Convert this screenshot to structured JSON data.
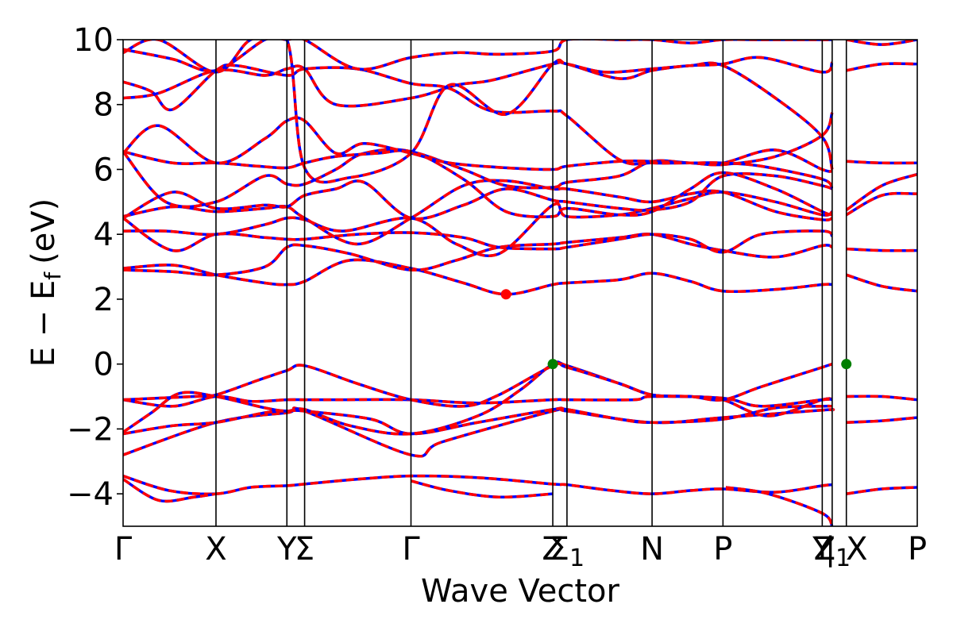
{
  "chart_data": {
    "type": "line",
    "title": "",
    "xlabel": "Wave Vector",
    "ylabel": "E − E",
    "ylabel_subscript": "f",
    "ylabel_unit": "(eV)",
    "ylim": [
      -5,
      10
    ],
    "yticks": [
      -4,
      -2,
      0,
      2,
      4,
      6,
      8,
      10
    ],
    "ytick_labels": [
      "−4",
      "−2",
      "0",
      "2",
      "4",
      "6",
      "8",
      "10"
    ],
    "xlim": [
      0,
      11.2
    ],
    "kpoints": [
      {
        "label": "Γ",
        "x": 0
      },
      {
        "label": "X",
        "x": 1.31
      },
      {
        "label": "Y",
        "x": 2.31
      },
      {
        "label": "Σ",
        "x": 2.56
      },
      {
        "label": "Γ",
        "x": 4.06
      },
      {
        "label": "Z",
        "x": 6.06
      },
      {
        "label": "Σ",
        "sub": "1",
        "x": 6.26
      },
      {
        "label": "N",
        "x": 7.46
      },
      {
        "label": "P",
        "x": 8.46
      },
      {
        "label": "Y",
        "x": 9.86
      },
      {
        "label": "Z",
        "sub": "1",
        "x": 10.0
      },
      {
        "label": "| X",
        "x": 10.2
      },
      {
        "label": "P",
        "x": 11.2
      }
    ],
    "series_colors": {
      "primary": "#0000ff",
      "overlay": "#ff0000"
    },
    "series": [
      {
        "x": [
          0,
          0.65,
          1.31,
          1.8,
          2.31,
          2.56,
          3.3,
          4.06,
          5.0,
          6.06,
          6.26,
          6.9,
          7.46,
          8.0,
          8.46,
          9.2,
          9.86,
          10.0
        ],
        "y": [
          -3.45,
          -3.9,
          -4.0,
          -3.8,
          -3.75,
          -3.7,
          -3.55,
          -3.45,
          -3.5,
          -3.7,
          -3.72,
          -3.9,
          -4.0,
          -3.9,
          -3.85,
          -3.95,
          -3.75,
          -3.72
        ]
      },
      {
        "x": [
          0,
          0.5,
          1.0,
          1.31
        ],
        "y": [
          -3.55,
          -4.2,
          -4.1,
          -4.0
        ]
      },
      {
        "x": [
          4.06,
          4.6,
          5.3,
          6.06
        ],
        "y": [
          -3.6,
          -3.9,
          -4.1,
          -4.0
        ]
      },
      {
        "x": [
          8.5,
          9.1,
          9.86,
          10.0
        ],
        "y": [
          -3.8,
          -4.0,
          -4.6,
          -5.0
        ]
      },
      {
        "x": [
          0,
          1.31,
          2.31,
          2.56,
          4.06,
          4.5,
          6.06,
          6.26,
          7.46,
          8.46,
          9.86,
          10.0
        ],
        "y": [
          -2.8,
          -1.8,
          -1.5,
          -1.45,
          -2.8,
          -2.4,
          -1.45,
          -1.45,
          -1.8,
          -1.65,
          -1.42,
          -1.42
        ]
      },
      {
        "x": [
          0,
          0.7,
          1.31,
          2.0,
          2.31,
          2.56,
          3.5,
          4.06,
          5.0,
          6.06,
          6.26,
          7.0,
          7.46,
          8.46,
          9.2,
          9.86,
          10.0
        ],
        "y": [
          -2.15,
          -1.9,
          -1.8,
          -1.5,
          -1.45,
          -1.45,
          -1.7,
          -2.15,
          -1.8,
          -1.4,
          -1.4,
          -1.7,
          -1.8,
          -1.7,
          -1.35,
          -1.3,
          -1.3
        ]
      },
      {
        "x": [
          0,
          0.4,
          0.8,
          1.31,
          2.0,
          2.31,
          2.56,
          3.2,
          4.06,
          5.0,
          5.6,
          6.06,
          6.26,
          7.0,
          7.46,
          8.0,
          8.46,
          9.1,
          9.86,
          10.0
        ],
        "y": [
          -2.1,
          -1.5,
          -0.9,
          -1.0,
          -1.35,
          -1.45,
          -1.4,
          -1.9,
          -2.15,
          -1.6,
          -0.8,
          0.0,
          -0.05,
          -0.6,
          -0.95,
          -1.0,
          -1.1,
          -1.6,
          -1.1,
          -1.1
        ]
      },
      {
        "x": [
          0,
          0.7,
          1.31,
          1.8,
          2.31,
          2.56,
          3.0,
          4.06,
          5.0,
          6.06,
          6.26,
          7.2,
          7.46,
          8.46,
          9.0,
          9.86,
          10.0
        ],
        "y": [
          -1.1,
          -1.3,
          -1.0,
          -1.15,
          -1.1,
          -1.1,
          -1.1,
          -1.1,
          -1.2,
          -1.1,
          -1.1,
          -1.1,
          -1.0,
          -1.05,
          -1.3,
          -1.1,
          -1.1
        ]
      },
      {
        "x": [
          0,
          1.0,
          1.31,
          1.9,
          2.31,
          2.56,
          3.3,
          4.06,
          4.8,
          5.3,
          6.06,
          6.26,
          7.0,
          7.46,
          8.0,
          8.46,
          9.0,
          9.86,
          10.0
        ],
        "y": [
          -1.1,
          -1.0,
          -0.95,
          -0.5,
          -0.2,
          -0.05,
          -0.6,
          -1.1,
          -1.3,
          -0.95,
          -0.05,
          -0.1,
          -0.6,
          -0.95,
          -1.0,
          -1.1,
          -0.7,
          -0.1,
          0.0
        ]
      },
      {
        "x": [
          10.2,
          10.7,
          11.2
        ],
        "y": [
          -4.0,
          -3.85,
          -3.8
        ]
      },
      {
        "x": [
          10.2,
          10.7,
          11.2
        ],
        "y": [
          -1.8,
          -1.75,
          -1.65
        ]
      },
      {
        "x": [
          10.2,
          10.7,
          11.2
        ],
        "y": [
          -1.0,
          -1.0,
          -1.1
        ]
      },
      {
        "x": [
          0,
          0.7,
          1.31,
          2.0,
          2.31,
          2.56,
          3.2,
          4.06,
          4.8,
          5.4,
          6.06,
          6.26,
          7.0,
          7.46,
          8.0,
          8.46,
          9.2,
          9.86,
          10.0
        ],
        "y": [
          2.95,
          3.05,
          2.75,
          2.5,
          2.45,
          2.55,
          3.2,
          2.95,
          2.5,
          2.15,
          2.45,
          2.5,
          2.6,
          2.8,
          2.55,
          2.25,
          2.3,
          2.45,
          2.45
        ]
      },
      {
        "x": [
          0,
          0.7,
          1.31,
          2.0,
          2.31,
          2.56,
          3.2,
          4.06,
          4.7,
          5.3,
          6.06,
          6.26,
          7.0,
          7.46,
          8.0,
          8.46,
          9.2,
          9.86,
          10.0
        ],
        "y": [
          2.9,
          2.85,
          2.75,
          3.0,
          3.6,
          3.65,
          3.4,
          2.9,
          3.2,
          3.6,
          3.7,
          3.75,
          3.9,
          4.0,
          3.7,
          3.5,
          3.3,
          3.65,
          3.6
        ]
      },
      {
        "x": [
          0,
          0.7,
          1.31,
          2.0,
          2.31,
          2.56,
          3.3,
          4.06,
          4.8,
          5.3,
          6.06,
          6.26,
          7.0,
          7.46,
          8.0,
          8.46,
          9.0,
          9.86,
          10.0
        ],
        "y": [
          4.5,
          3.5,
          4.0,
          3.9,
          3.85,
          3.85,
          4.0,
          4.05,
          3.9,
          3.6,
          3.55,
          3.6,
          3.85,
          4.0,
          3.85,
          3.45,
          4.0,
          4.1,
          3.95
        ]
      },
      {
        "x": [
          0,
          0.6,
          1.31,
          2.0,
          2.31,
          2.56,
          3.1,
          4.06,
          4.7,
          5.3,
          6.06,
          6.26,
          7.0,
          7.46,
          8.0,
          8.46,
          9.2,
          9.86,
          10.0
        ],
        "y": [
          4.1,
          4.1,
          4.0,
          4.3,
          4.5,
          4.45,
          4.1,
          4.5,
          3.7,
          3.4,
          4.9,
          4.55,
          4.6,
          4.8,
          5.1,
          5.3,
          5.0,
          4.6,
          4.7
        ]
      },
      {
        "x": [
          0,
          0.7,
          1.31,
          2.0,
          2.31,
          2.56,
          3.3,
          4.06,
          4.8,
          5.4,
          6.06,
          6.26,
          7.0,
          7.46,
          8.0,
          8.46,
          9.2,
          9.86,
          10.0
        ],
        "y": [
          4.55,
          4.85,
          4.7,
          4.8,
          4.85,
          4.5,
          3.7,
          4.5,
          5.5,
          5.65,
          5.4,
          5.4,
          5.15,
          5.0,
          5.25,
          5.3,
          4.7,
          4.45,
          4.5
        ]
      },
      {
        "x": [
          0,
          0.7,
          1.31,
          2.0,
          2.31,
          2.56,
          3.0,
          3.4,
          4.06,
          4.8,
          5.4,
          6.06,
          6.26,
          7.0,
          7.46,
          8.0,
          8.46,
          9.2,
          9.86,
          10.0
        ],
        "y": [
          4.5,
          5.3,
          4.8,
          4.9,
          4.85,
          5.2,
          5.4,
          5.6,
          4.5,
          4.9,
          5.4,
          5.05,
          5.0,
          4.8,
          4.75,
          5.0,
          5.8,
          5.8,
          5.5,
          5.4
        ]
      },
      {
        "x": [
          0,
          0.6,
          1.31,
          2.0,
          2.31,
          2.56,
          3.0,
          3.4,
          4.06,
          4.8,
          5.4,
          6.06,
          6.26,
          7.0,
          7.46,
          8.0,
          8.46,
          9.2,
          9.86,
          10.0
        ],
        "y": [
          6.55,
          5.0,
          5.0,
          5.8,
          5.55,
          5.55,
          6.0,
          6.5,
          6.55,
          5.7,
          4.7,
          4.55,
          4.8,
          4.6,
          4.7,
          5.4,
          5.9,
          5.4,
          4.7,
          4.6
        ]
      },
      {
        "x": [
          0,
          0.7,
          1.31,
          1.9,
          2.31,
          2.56,
          3.0,
          3.6,
          4.06,
          4.8,
          5.4,
          6.06,
          6.26,
          7.0,
          7.46,
          8.0,
          8.46,
          9.2,
          9.86,
          10.0
        ],
        "y": [
          6.55,
          6.2,
          6.2,
          6.1,
          6.05,
          6.2,
          6.4,
          6.5,
          6.55,
          6.0,
          5.5,
          5.45,
          5.6,
          5.8,
          6.25,
          6.2,
          6.2,
          6.6,
          6.0,
          5.95
        ]
      },
      {
        "x": [
          0,
          0.5,
          1.31,
          2.0,
          2.31,
          2.56,
          3.0,
          3.4,
          4.06,
          4.6,
          5.4,
          6.06,
          6.26,
          7.0,
          7.46,
          8.0,
          8.46,
          9.2,
          9.86,
          10.0
        ],
        "y": [
          6.5,
          7.35,
          6.2,
          6.95,
          7.5,
          7.5,
          6.5,
          6.8,
          6.5,
          6.2,
          6.05,
          6.0,
          6.1,
          6.25,
          6.25,
          6.2,
          6.15,
          6.4,
          7.05,
          7.75
        ]
      },
      {
        "x": [
          0,
          0.5,
          1.31,
          2.0,
          2.31,
          2.56,
          3.0,
          4.06,
          4.7,
          5.2,
          6.06,
          6.26,
          7.0,
          7.46,
          8.0,
          8.46,
          9.2,
          9.86,
          10.0
        ],
        "y": [
          8.2,
          8.35,
          9.05,
          8.9,
          9.1,
          9.1,
          8.0,
          8.2,
          8.6,
          8.75,
          9.25,
          9.25,
          8.8,
          9.05,
          9.2,
          9.2,
          8.2,
          7.0,
          6.0
        ]
      },
      {
        "x": [
          0,
          0.4,
          0.7,
          1.31,
          1.6,
          2.31,
          2.56,
          3.3,
          4.06,
          4.6,
          5.2,
          6.06,
          6.26,
          7.0,
          7.46,
          8.0,
          8.46,
          9.0,
          9.86,
          10.0
        ],
        "y": [
          8.7,
          8.4,
          7.85,
          9.05,
          9.2,
          8.9,
          9.1,
          9.1,
          8.65,
          8.5,
          7.8,
          7.8,
          7.65,
          6.3,
          6.2,
          6.2,
          6.2,
          6.1,
          5.7,
          5.4
        ]
      },
      {
        "x": [
          0,
          0.5,
          1.31,
          1.8,
          2.31,
          2.56,
          3.2,
          4.06,
          4.6,
          5.4,
          6.06,
          6.26,
          6.8,
          7.46,
          8.0,
          8.46,
          9.0,
          9.86,
          10.0
        ],
        "y": [
          9.6,
          10.0,
          9.0,
          10.0,
          10.0,
          6.05,
          5.75,
          6.5,
          8.6,
          7.7,
          9.25,
          9.25,
          9.0,
          9.1,
          9.2,
          9.25,
          9.45,
          9.0,
          9.3
        ]
      },
      {
        "x": [
          0,
          0.7,
          1.31,
          2.0,
          2.31,
          2.56,
          3.3,
          4.06,
          4.7,
          5.3,
          6.06,
          6.26,
          7.0,
          7.46,
          8.0,
          8.46,
          9.0,
          9.86,
          10.0
        ],
        "y": [
          9.7,
          9.4,
          9.05,
          10.0,
          10.0,
          10.0,
          9.1,
          9.45,
          9.6,
          9.55,
          9.65,
          10.0,
          10.0,
          10.0,
          9.9,
          10.0,
          10.0,
          10.0,
          10.0
        ]
      },
      {
        "x": [
          10.2,
          10.7,
          11.2
        ],
        "y": [
          2.75,
          2.4,
          2.25
        ]
      },
      {
        "x": [
          10.2,
          10.7,
          11.2
        ],
        "y": [
          3.55,
          3.5,
          3.5
        ]
      },
      {
        "x": [
          10.2,
          10.7,
          11.2
        ],
        "y": [
          4.6,
          5.2,
          5.25
        ]
      },
      {
        "x": [
          10.2,
          10.7,
          11.2
        ],
        "y": [
          4.75,
          5.5,
          5.85
        ]
      },
      {
        "x": [
          10.2,
          10.7,
          11.2
        ],
        "y": [
          6.25,
          6.2,
          6.2
        ]
      },
      {
        "x": [
          10.2,
          10.7,
          11.2
        ],
        "y": [
          9.05,
          9.25,
          9.25
        ]
      },
      {
        "x": [
          10.2,
          10.7,
          11.2
        ],
        "y": [
          10.0,
          9.85,
          10.0
        ]
      }
    ],
    "markers": [
      {
        "x": 5.4,
        "y": 2.15,
        "color": "#ff0000"
      },
      {
        "x": 6.06,
        "y": 0.0,
        "color": "#007f00"
      },
      {
        "x": 10.2,
        "y": 0.0,
        "color": "#007f00"
      }
    ],
    "grid": false,
    "legend": "none"
  }
}
